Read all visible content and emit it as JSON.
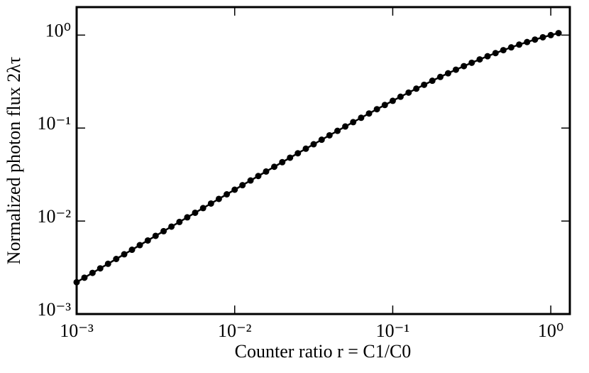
{
  "chart_data": {
    "type": "line",
    "marker": true,
    "color": "#000000",
    "log_x": true,
    "log_y": true,
    "grid": false,
    "xlabel": "Counter ratio r = C1/C0",
    "ylabel": "Normalized photon flux 2λτ",
    "xlim": [
      0.001,
      1.32
    ],
    "ylim": [
      0.001,
      2.0
    ],
    "xticks": [
      {
        "value": 0.001,
        "label": "10⁻³"
      },
      {
        "value": 0.01,
        "label": "10⁻²"
      },
      {
        "value": 0.1,
        "label": "10⁻¹"
      },
      {
        "value": 1,
        "label": "10⁰"
      }
    ],
    "yticks": [
      {
        "value": 0.001,
        "label": "10⁻³"
      },
      {
        "value": 0.01,
        "label": "10⁻²"
      },
      {
        "value": 0.1,
        "label": "10⁻¹"
      },
      {
        "value": 1,
        "label": "10⁰"
      }
    ],
    "x": [
      0.001,
      0.00112,
      0.00126,
      0.00141,
      0.00158,
      0.00178,
      0.002,
      0.00224,
      0.00251,
      0.00282,
      0.00316,
      0.00355,
      0.00398,
      0.00447,
      0.00501,
      0.00562,
      0.00631,
      0.00708,
      0.00794,
      0.00891,
      0.01,
      0.0112,
      0.0126,
      0.0141,
      0.0158,
      0.0178,
      0.02,
      0.0224,
      0.0251,
      0.0282,
      0.0316,
      0.0355,
      0.0398,
      0.0447,
      0.0501,
      0.0562,
      0.0631,
      0.0708,
      0.0794,
      0.0891,
      0.1,
      0.112,
      0.126,
      0.141,
      0.158,
      0.178,
      0.2,
      0.224,
      0.251,
      0.282,
      0.316,
      0.355,
      0.398,
      0.447,
      0.501,
      0.562,
      0.631,
      0.708,
      0.794,
      0.891,
      1.0,
      1.12
    ],
    "values": [
      0.0022,
      0.00246,
      0.00277,
      0.0031,
      0.00347,
      0.00391,
      0.00439,
      0.00491,
      0.00551,
      0.00618,
      0.00693,
      0.00778,
      0.00871,
      0.00978,
      0.01096,
      0.01228,
      0.01378,
      0.01544,
      0.0173,
      0.01939,
      0.02174,
      0.02431,
      0.02731,
      0.0305,
      0.03411,
      0.03834,
      0.04297,
      0.04799,
      0.05361,
      0.06001,
      0.06698,
      0.07491,
      0.08357,
      0.09333,
      0.104,
      0.1158,
      0.129,
      0.1436,
      0.1595,
      0.1771,
      0.1964,
      0.2172,
      0.2408,
      0.2653,
      0.2922,
      0.3227,
      0.3548,
      0.3884,
      0.4244,
      0.4635,
      0.5041,
      0.5477,
      0.5926,
      0.6401,
      0.6884,
      0.7384,
      0.79,
      0.8421,
      0.8945,
      0.9473,
      1.0,
      1.051
    ]
  }
}
